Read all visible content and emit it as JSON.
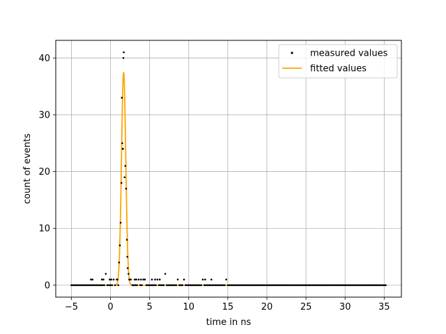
{
  "chart_data": {
    "type": "scatter",
    "title": "",
    "xlabel": "time in ns",
    "ylabel": "count of events",
    "xlim": [
      -7.0,
      37.2
    ],
    "ylim": [
      -2.1,
      43.1
    ],
    "xticks": [
      -5,
      0,
      5,
      10,
      15,
      20,
      25,
      30,
      35
    ],
    "yticks": [
      0,
      10,
      20,
      30,
      40
    ],
    "grid": true,
    "legend_position": "top-right",
    "colors": {
      "measured": "#000000",
      "fitted": "#ffa500",
      "grid": "#b0b0b0"
    },
    "series": [
      {
        "name": "measured values",
        "kind": "scatter",
        "points": [
          [
            -2.5,
            1
          ],
          [
            -2.3,
            1
          ],
          [
            -1.1,
            1
          ],
          [
            -0.9,
            1
          ],
          [
            -0.6,
            2
          ],
          [
            -0.1,
            1
          ],
          [
            0.1,
            1
          ],
          [
            0.4,
            1
          ],
          [
            0.8,
            1
          ],
          [
            0.9,
            1
          ],
          [
            1.1,
            4
          ],
          [
            1.2,
            7
          ],
          [
            1.3,
            11
          ],
          [
            1.4,
            18
          ],
          [
            1.45,
            33
          ],
          [
            1.5,
            25
          ],
          [
            1.55,
            24
          ],
          [
            1.6,
            24
          ],
          [
            1.65,
            40
          ],
          [
            1.7,
            41
          ],
          [
            1.8,
            19
          ],
          [
            1.9,
            21
          ],
          [
            2.0,
            17
          ],
          [
            2.1,
            8
          ],
          [
            2.15,
            5
          ],
          [
            2.2,
            3
          ],
          [
            2.3,
            2
          ],
          [
            2.4,
            1
          ],
          [
            2.6,
            1
          ],
          [
            3.1,
            1
          ],
          [
            3.3,
            1
          ],
          [
            3.6,
            1
          ],
          [
            3.9,
            1
          ],
          [
            4.2,
            1
          ],
          [
            4.4,
            1
          ],
          [
            5.3,
            1
          ],
          [
            5.7,
            1
          ],
          [
            6.0,
            1
          ],
          [
            6.3,
            1
          ],
          [
            7.0,
            2
          ],
          [
            8.6,
            1
          ],
          [
            9.4,
            1
          ],
          [
            11.8,
            1
          ],
          [
            12.1,
            1
          ],
          [
            12.9,
            1
          ],
          [
            14.8,
            1
          ]
        ]
      },
      {
        "name": "fitted values",
        "kind": "line",
        "model": "gaussian",
        "amplitude": 37.5,
        "center": 1.68,
        "sigma": 0.27,
        "baseline": 0,
        "x_range": [
          -5,
          35.2
        ]
      }
    ]
  }
}
